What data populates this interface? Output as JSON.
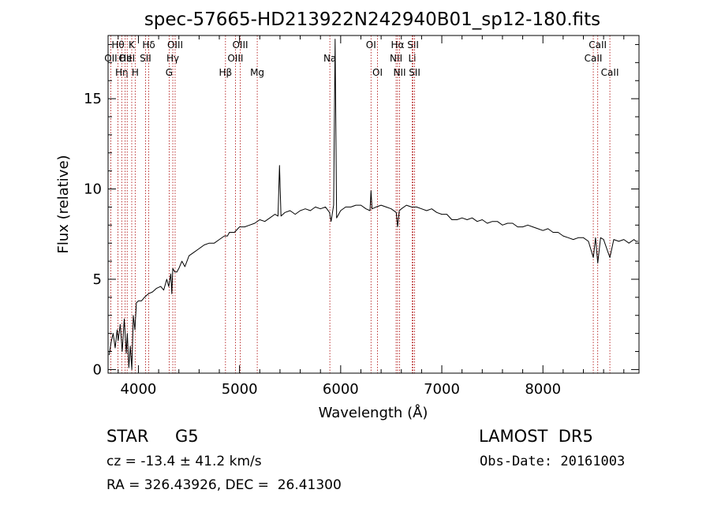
{
  "chart_data": {
    "type": "line",
    "title": "spec-57665-HD213922N242940B01_sp12-180.fits",
    "xlabel": "Wavelength (Å)",
    "ylabel": "Flux (relative)",
    "xlim": [
      3700,
      8950
    ],
    "ylim": [
      -0.2,
      18.5
    ],
    "xticks": [
      {
        "value": 4000,
        "label": "4000"
      },
      {
        "value": 5000,
        "label": "5000"
      },
      {
        "value": 6000,
        "label": "6000"
      },
      {
        "value": 7000,
        "label": "7000"
      },
      {
        "value": 8000,
        "label": "8000"
      }
    ],
    "yticks": [
      {
        "value": 0,
        "label": "0"
      },
      {
        "value": 5,
        "label": "5"
      },
      {
        "value": 10,
        "label": "10"
      },
      {
        "value": 15,
        "label": "15"
      }
    ],
    "grid": false,
    "series": [
      {
        "x": [
          3710,
          3730,
          3750,
          3770,
          3790,
          3800,
          3820,
          3840,
          3860,
          3880,
          3890,
          3905,
          3920,
          3935,
          3950,
          3965,
          3980,
          4000,
          4030,
          4060,
          4100,
          4140,
          4180,
          4220,
          4250,
          4280,
          4300,
          4320,
          4330,
          4340,
          4360,
          4380,
          4400,
          4430,
          4460,
          4500,
          4550,
          4600,
          4650,
          4700,
          4750,
          4800,
          4850,
          4880,
          4900,
          4950,
          5000,
          5050,
          5100,
          5150,
          5200,
          5250,
          5300,
          5350,
          5380,
          5395,
          5410,
          5450,
          5500,
          5550,
          5600,
          5650,
          5700,
          5750,
          5800,
          5850,
          5890,
          5905,
          5930,
          5945,
          5960,
          6000,
          6050,
          6100,
          6150,
          6200,
          6250,
          6290,
          6300,
          6310,
          6350,
          6400,
          6450,
          6500,
          6550,
          6563,
          6580,
          6600,
          6650,
          6700,
          6750,
          6800,
          6850,
          6900,
          6950,
          7000,
          7050,
          7100,
          7150,
          7200,
          7250,
          7300,
          7350,
          7400,
          7450,
          7500,
          7550,
          7600,
          7650,
          7700,
          7750,
          7800,
          7850,
          7900,
          7950,
          8000,
          8050,
          8100,
          8150,
          8200,
          8250,
          8300,
          8350,
          8400,
          8450,
          8498,
          8520,
          8542,
          8570,
          8600,
          8662,
          8700,
          8750,
          8800,
          8850,
          8900,
          8920,
          8940
        ],
        "y": [
          0.8,
          1.5,
          2.0,
          1.2,
          2.2,
          1.6,
          2.5,
          1.0,
          2.8,
          0.9,
          2.0,
          0.1,
          1.3,
          0.0,
          3.0,
          2.2,
          3.7,
          3.8,
          3.8,
          4.0,
          4.2,
          4.3,
          4.5,
          4.6,
          4.4,
          5.0,
          4.6,
          5.3,
          4.2,
          5.6,
          5.4,
          5.4,
          5.6,
          6.0,
          5.7,
          6.3,
          6.5,
          6.7,
          6.9,
          7.0,
          7.0,
          7.2,
          7.4,
          7.4,
          7.6,
          7.6,
          7.9,
          7.9,
          8.0,
          8.1,
          8.3,
          8.2,
          8.4,
          8.6,
          8.5,
          11.3,
          8.5,
          8.7,
          8.8,
          8.6,
          8.8,
          8.9,
          8.8,
          9.0,
          8.9,
          9.0,
          8.7,
          8.2,
          9.1,
          18.3,
          8.4,
          8.8,
          9.0,
          9.0,
          9.1,
          9.1,
          8.9,
          8.8,
          9.9,
          8.9,
          9.0,
          9.1,
          9.0,
          8.9,
          8.7,
          7.9,
          8.8,
          8.9,
          9.1,
          9.0,
          9.0,
          8.9,
          8.8,
          8.9,
          8.7,
          8.6,
          8.6,
          8.3,
          8.3,
          8.4,
          8.3,
          8.4,
          8.2,
          8.3,
          8.1,
          8.2,
          8.2,
          8.0,
          8.1,
          8.1,
          7.9,
          7.9,
          8.0,
          7.9,
          7.8,
          7.7,
          7.8,
          7.6,
          7.6,
          7.4,
          7.3,
          7.2,
          7.3,
          7.3,
          7.1,
          6.2,
          7.3,
          5.9,
          7.3,
          7.2,
          6.2,
          7.2,
          7.1,
          7.2,
          7.0,
          7.2,
          7.1,
          7.1
        ]
      }
    ],
    "line_ids": [
      {
        "x": 3727,
        "label": "OII",
        "row": 2
      },
      {
        "x": 3798,
        "label": "Hθ",
        "row": 1
      },
      {
        "x": 3835,
        "label": "Hη",
        "row": 3
      },
      {
        "x": 3869,
        "label": "OII",
        "row": 2
      },
      {
        "x": 3889,
        "label": "HeI",
        "row": 2
      },
      {
        "x": 3934,
        "label": "K",
        "row": 1
      },
      {
        "x": 3968,
        "label": "H",
        "row": 3
      },
      {
        "x": 4070,
        "label": "SII",
        "row": 2
      },
      {
        "x": 4102,
        "label": "Hδ",
        "row": 1
      },
      {
        "x": 4304,
        "label": "G",
        "row": 3
      },
      {
        "x": 4340,
        "label": "Hγ",
        "row": 2
      },
      {
        "x": 4363,
        "label": "OIII",
        "row": 1
      },
      {
        "x": 4861,
        "label": "Hβ",
        "row": 3
      },
      {
        "x": 4959,
        "label": "OIII",
        "row": 2
      },
      {
        "x": 5007,
        "label": "OIII",
        "row": 1
      },
      {
        "x": 5175,
        "label": "Mg",
        "row": 3
      },
      {
        "x": 5893,
        "label": "Na",
        "row": 2
      },
      {
        "x": 6300,
        "label": "OI",
        "row": 1
      },
      {
        "x": 6364,
        "label": "OI",
        "row": 3
      },
      {
        "x": 6548,
        "label": "NII",
        "row": 2
      },
      {
        "x": 6563,
        "label": "Hα",
        "row": 1
      },
      {
        "x": 6583,
        "label": "NII",
        "row": 3
      },
      {
        "x": 6707,
        "label": "Li",
        "row": 2
      },
      {
        "x": 6716,
        "label": "SII",
        "row": 1
      },
      {
        "x": 6731,
        "label": "SII",
        "row": 3
      },
      {
        "x": 8498,
        "label": "CaII",
        "row": 2
      },
      {
        "x": 8542,
        "label": "CaII",
        "row": 1
      },
      {
        "x": 8662,
        "label": "CaII",
        "row": 3
      }
    ]
  },
  "info": {
    "object_class": "STAR",
    "subclass": "G5",
    "survey": "LAMOST  DR5",
    "cz": "cz = -13.4 ± 41.2 km/s",
    "obs_date": "Obs-Date: 20161003",
    "coords": "RA = 326.43926, DEC =  26.41300"
  },
  "colors": {
    "spectrum": "#000000",
    "line_markers": "#aa0000",
    "axes": "#000000",
    "background": "#ffffff"
  }
}
